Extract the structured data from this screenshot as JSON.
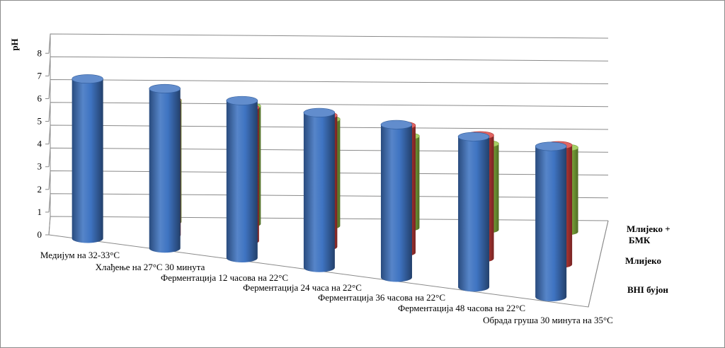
{
  "chart_data": {
    "type": "bar",
    "subtype": "3d-cylinder",
    "title": "",
    "ylabel": "pH",
    "xlabel": "",
    "ylim": [
      0,
      8
    ],
    "yticks": [
      "0",
      "1",
      "2",
      "3",
      "4",
      "5",
      "6",
      "7",
      "8"
    ],
    "grid": true,
    "categories": [
      "Медијум на 32-33°C",
      "Хлађење на 27°C 30 минута",
      "Ферментација 12 часова на 22°C",
      "Ферментација 24 часа на 22°C",
      "Ферментација 36 часова на 22°C",
      "Ферментација 48 часова на 22°C",
      "Обрада груша 30 минута на 35°C"
    ],
    "series": [
      {
        "name": "BHI бујон",
        "color": "#3f74c2",
        "values": [
          7.0,
          7.0,
          6.9,
          6.8,
          6.7,
          6.6,
          6.6
        ]
      },
      {
        "name": "Млијеко",
        "color": "#d9423f",
        "values": [
          6.6,
          6.6,
          6.5,
          6.4,
          6.2,
          6.0,
          5.8
        ]
      },
      {
        "name": "Млијеко + БМК",
        "color": "#92c544",
        "values": [
          6.6,
          6.5,
          6.3,
          5.7,
          4.9,
          4.6,
          4.5
        ]
      }
    ]
  }
}
